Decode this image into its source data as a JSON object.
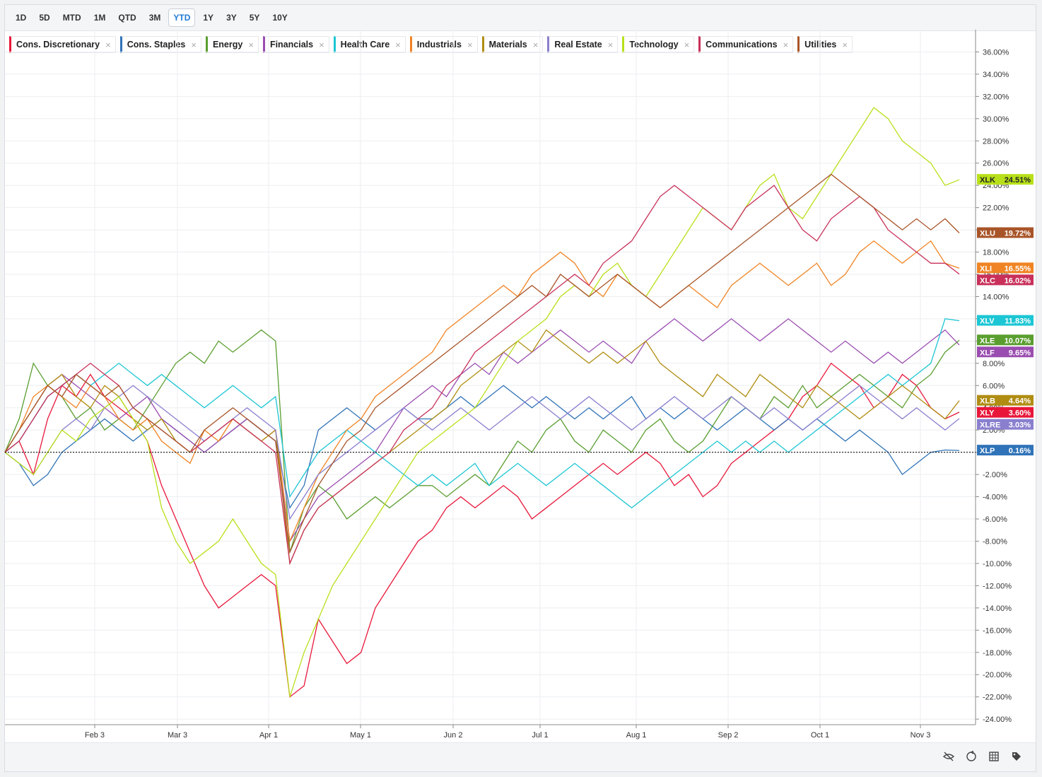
{
  "ranges": [
    "1D",
    "5D",
    "MTD",
    "1M",
    "QTD",
    "3M",
    "YTD",
    "1Y",
    "3Y",
    "5Y",
    "10Y"
  ],
  "active_range": "YTD",
  "legend": [
    {
      "label": "Cons. Discretionary",
      "color": "#e8173a"
    },
    {
      "label": "Cons. Staples",
      "color": "#2f73b8"
    },
    {
      "label": "Energy",
      "color": "#5a9e2f"
    },
    {
      "label": "Financials",
      "color": "#9a4db0"
    },
    {
      "label": "Health Care",
      "color": "#1cc6d4"
    },
    {
      "label": "Industrials",
      "color": "#f08424"
    },
    {
      "label": "Materials",
      "color": "#b08d12"
    },
    {
      "label": "Real Estate",
      "color": "#8a7fce"
    },
    {
      "label": "Technology",
      "color": "#b8e01a"
    },
    {
      "label": "Communications",
      "color": "#c8305a"
    },
    {
      "label": "Utilities",
      "color": "#a85428"
    }
  ],
  "tool_icons": [
    "hide-icon",
    "reset-zoom-icon",
    "table-icon",
    "tag-icon"
  ],
  "chart_data": {
    "type": "line",
    "x_tick_labels": [
      "Feb 3",
      "Mar 3",
      "Apr 1",
      "May 1",
      "Jun 2",
      "Jul 1",
      "Aug 1",
      "Sep 2",
      "Oct 1",
      "Nov 3"
    ],
    "y_tick_labels": [
      "36.00%",
      "34.00%",
      "32.00%",
      "30.00%",
      "28.00%",
      "26.00%",
      "24.00%",
      "22.00%",
      "20.00%",
      "18.00%",
      "16.00%",
      "14.00%",
      "12.00%",
      "10.00%",
      "8.00%",
      "6.00%",
      "4.00%",
      "2.00%",
      "0.00%",
      "-2.00%",
      "-4.00%",
      "-6.00%",
      "-8.00%",
      "-10.00%",
      "-12.00%",
      "-14.00%",
      "-16.00%",
      "-18.00%",
      "-20.00%",
      "-22.00%",
      "-24.00%"
    ],
    "ylim": [
      -24.5,
      38
    ],
    "baseline": 0,
    "series": [
      {
        "name": "Cons. Discretionary",
        "ticker": "XLY",
        "last": "3.60%",
        "color": "#e8173a",
        "values": [
          0,
          1,
          -2,
          3,
          6,
          5,
          7,
          5,
          4,
          3,
          1,
          -3,
          -6,
          -9,
          -12,
          -14,
          -13,
          -12,
          -11,
          -12,
          -22,
          -21,
          -15,
          -17,
          -19,
          -18,
          -14,
          -12,
          -10,
          -8,
          -7,
          -5,
          -4,
          -5,
          -4,
          -3,
          -4,
          -6,
          -5,
          -4,
          -3,
          -2,
          -1,
          -2,
          -1,
          0,
          -1,
          -3,
          -2,
          -4,
          -3,
          -1,
          0,
          1,
          2,
          3,
          5,
          6,
          8,
          7,
          6,
          4,
          5,
          7,
          6,
          4,
          3,
          3.6
        ]
      },
      {
        "name": "Cons. Staples",
        "ticker": "XLP",
        "last": "0.16%",
        "color": "#2f73b8",
        "values": [
          0,
          -1,
          -3,
          -2,
          0,
          1,
          2,
          3,
          2,
          1,
          2,
          3,
          2,
          1,
          0,
          1,
          2,
          3,
          2,
          1,
          -5,
          -3,
          2,
          3,
          4,
          3,
          2,
          3,
          4,
          3,
          3,
          4,
          5,
          4,
          5,
          6,
          5,
          4,
          5,
          4,
          3,
          4,
          3,
          4,
          5,
          3,
          4,
          3,
          4,
          3,
          2,
          3,
          4,
          3,
          2,
          3,
          2,
          3,
          2,
          1,
          2,
          1,
          0,
          -2,
          -1,
          0,
          0.2,
          0.16
        ]
      },
      {
        "name": "Energy",
        "ticker": "XLE",
        "last": "10.07%",
        "color": "#5a9e2f",
        "values": [
          0,
          3,
          8,
          6,
          5,
          3,
          4,
          2,
          3,
          2,
          4,
          6,
          8,
          9,
          8,
          10,
          9,
          10,
          11,
          10,
          -9,
          -5,
          -3,
          -4,
          -6,
          -5,
          -4,
          -5,
          -4,
          -3,
          -3,
          -4,
          -3,
          -2,
          -3,
          -1,
          1,
          0,
          2,
          3,
          1,
          0,
          2,
          1,
          0,
          2,
          3,
          1,
          0,
          1,
          3,
          5,
          4,
          3,
          5,
          4,
          6,
          4,
          5,
          6,
          7,
          6,
          5,
          4,
          6,
          7,
          9,
          10.07
        ]
      },
      {
        "name": "Financials",
        "ticker": "XLF",
        "last": "9.65%",
        "color": "#9a4db0",
        "values": [
          0,
          2,
          4,
          6,
          7,
          6,
          5,
          4,
          3,
          4,
          5,
          3,
          2,
          1,
          0,
          1,
          2,
          3,
          2,
          1,
          -8,
          -6,
          -4,
          -3,
          -2,
          -1,
          0,
          2,
          4,
          5,
          6,
          5,
          7,
          8,
          7,
          9,
          8,
          9,
          10,
          11,
          10,
          9,
          10,
          9,
          8,
          10,
          11,
          12,
          11,
          10,
          11,
          12,
          11,
          10,
          11,
          12,
          11,
          10,
          9,
          10,
          9,
          8,
          9,
          8,
          9,
          10,
          11,
          9.65
        ]
      },
      {
        "name": "Health Care",
        "ticker": "XLV",
        "last": "11.83%",
        "color": "#1cc6d4",
        "values": [
          0,
          1,
          3,
          5,
          6,
          7,
          6,
          7,
          8,
          7,
          6,
          7,
          6,
          5,
          4,
          5,
          6,
          5,
          4,
          5,
          -4,
          -2,
          0,
          1,
          2,
          1,
          0,
          -1,
          -2,
          -3,
          -2,
          -3,
          -2,
          -1,
          -3,
          -2,
          -1,
          -2,
          -3,
          -2,
          -1,
          -2,
          -3,
          -4,
          -5,
          -4,
          -3,
          -2,
          -1,
          0,
          1,
          0,
          1,
          0,
          1,
          0,
          1,
          2,
          3,
          4,
          5,
          6,
          7,
          6,
          7,
          8,
          12,
          11.83
        ]
      },
      {
        "name": "Industrials",
        "ticker": "XLI",
        "last": "16.55%",
        "color": "#f08424",
        "values": [
          0,
          2,
          5,
          6,
          5,
          4,
          6,
          5,
          3,
          2,
          3,
          1,
          0,
          -1,
          2,
          1,
          3,
          2,
          1,
          2,
          -8,
          -5,
          -2,
          0,
          2,
          3,
          5,
          6,
          7,
          8,
          9,
          11,
          12,
          13,
          14,
          15,
          14,
          16,
          17,
          18,
          17,
          15,
          14,
          16,
          15,
          14,
          13,
          14,
          15,
          14,
          13,
          15,
          16,
          17,
          16,
          15,
          16,
          17,
          15,
          16,
          18,
          19,
          18,
          17,
          18,
          19,
          17,
          16.55
        ]
      },
      {
        "name": "Materials",
        "ticker": "XLB",
        "last": "4.64%",
        "color": "#b08d12",
        "values": [
          0,
          2,
          4,
          6,
          7,
          5,
          4,
          6,
          5,
          3,
          2,
          3,
          1,
          0,
          1,
          2,
          3,
          2,
          1,
          2,
          -10,
          -7,
          -5,
          -4,
          -3,
          -2,
          -1,
          0,
          1,
          2,
          3,
          4,
          6,
          7,
          8,
          9,
          10,
          9,
          11,
          10,
          9,
          8,
          9,
          8,
          9,
          10,
          8,
          7,
          6,
          5,
          7,
          6,
          5,
          7,
          6,
          5,
          4,
          6,
          5,
          4,
          3,
          4,
          5,
          6,
          5,
          4,
          3,
          4.64
        ]
      },
      {
        "name": "Real Estate",
        "ticker": "XLRE",
        "last": "3.03%",
        "color": "#8a7fce",
        "values": [
          0,
          -1,
          -2,
          0,
          2,
          3,
          2,
          4,
          5,
          6,
          5,
          4,
          3,
          2,
          1,
          2,
          3,
          4,
          3,
          2,
          -6,
          -4,
          -2,
          -1,
          0,
          1,
          2,
          3,
          4,
          3,
          2,
          3,
          4,
          3,
          2,
          3,
          4,
          5,
          4,
          3,
          4,
          5,
          4,
          3,
          2,
          3,
          4,
          5,
          4,
          3,
          4,
          5,
          4,
          3,
          4,
          3,
          2,
          3,
          4,
          5,
          6,
          5,
          4,
          3,
          4,
          3,
          2,
          3.03
        ]
      },
      {
        "name": "Technology",
        "ticker": "XLK",
        "last": "24.51%",
        "color": "#b8e01a",
        "values": [
          0,
          -1,
          -2,
          0,
          2,
          1,
          3,
          4,
          5,
          3,
          1,
          -5,
          -8,
          -10,
          -9,
          -8,
          -6,
          -8,
          -10,
          -11,
          -22,
          -18,
          -15,
          -12,
          -10,
          -8,
          -6,
          -4,
          -2,
          0,
          1,
          2,
          3,
          4,
          6,
          8,
          10,
          11,
          12,
          14,
          15,
          14,
          16,
          17,
          15,
          14,
          16,
          18,
          20,
          22,
          21,
          20,
          22,
          24,
          25,
          22,
          21,
          23,
          25,
          27,
          29,
          31,
          30,
          28,
          27,
          26,
          24,
          24.51
        ]
      },
      {
        "name": "Communications",
        "ticker": "XLC",
        "last": "16.02%",
        "color": "#c8305a",
        "values": [
          0,
          1,
          3,
          5,
          6,
          7,
          8,
          7,
          6,
          4,
          3,
          2,
          1,
          0,
          1,
          2,
          3,
          2,
          1,
          0,
          -10,
          -7,
          -5,
          -4,
          -3,
          -2,
          -1,
          0,
          2,
          3,
          4,
          6,
          7,
          9,
          10,
          11,
          12,
          13,
          14,
          15,
          16,
          15,
          17,
          18,
          19,
          21,
          23,
          24,
          23,
          22,
          21,
          20,
          22,
          23,
          24,
          22,
          20,
          19,
          21,
          22,
          23,
          22,
          20,
          19,
          18,
          17,
          17,
          16.02
        ]
      },
      {
        "name": "Utilities",
        "ticker": "XLU",
        "last": "19.72%",
        "color": "#a85428",
        "values": [
          0,
          2,
          4,
          6,
          5,
          7,
          6,
          5,
          6,
          4,
          3,
          2,
          1,
          0,
          2,
          3,
          4,
          3,
          2,
          1,
          -9,
          -6,
          -3,
          -1,
          1,
          2,
          4,
          5,
          6,
          7,
          8,
          9,
          10,
          11,
          12,
          13,
          14,
          15,
          14,
          16,
          15,
          14,
          15,
          16,
          15,
          14,
          13,
          14,
          15,
          16,
          17,
          18,
          19,
          20,
          21,
          22,
          23,
          24,
          25,
          24,
          23,
          22,
          21,
          20,
          21,
          20,
          21,
          19.72
        ]
      }
    ]
  }
}
